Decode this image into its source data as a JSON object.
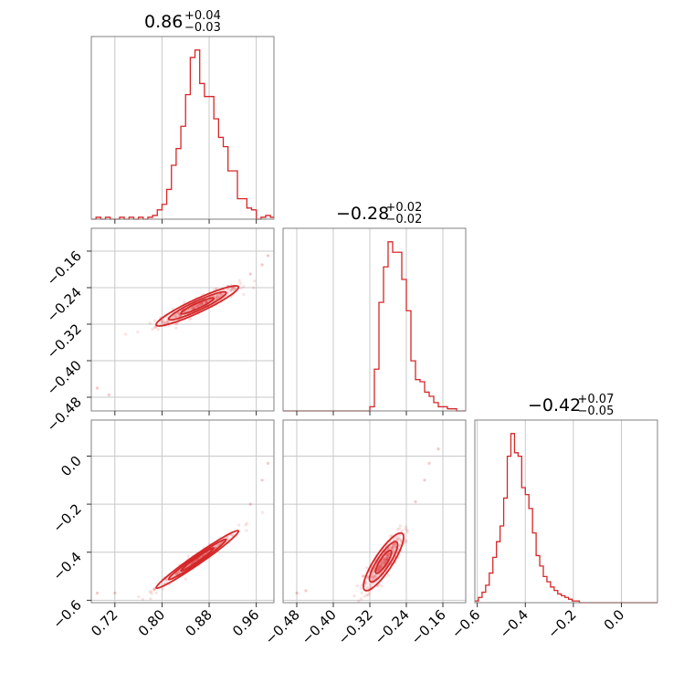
{
  "chart_data": {
    "type": "corner",
    "color": "#d62728",
    "grid": true,
    "parameters": [
      {
        "range": [
          0.68,
          0.99
        ],
        "ticks": [
          0.72,
          0.8,
          0.88,
          0.96
        ],
        "tick_labels": [
          "0.72",
          "0.80",
          "0.88",
          "0.96"
        ],
        "title": {
          "value": "0.86",
          "upper": "+0.04",
          "lower": "−0.03"
        },
        "hist_edges": [
          0.68,
          0.688,
          0.696,
          0.704,
          0.712,
          0.72,
          0.728,
          0.736,
          0.744,
          0.752,
          0.76,
          0.768,
          0.776,
          0.784,
          0.792,
          0.8,
          0.808,
          0.816,
          0.824,
          0.832,
          0.84,
          0.848,
          0.856,
          0.864,
          0.872,
          0.88,
          0.888,
          0.896,
          0.904,
          0.912,
          0.92,
          0.928,
          0.936,
          0.944,
          0.952,
          0.96,
          0.968,
          0.976,
          0.984,
          0.99
        ],
        "hist_values": [
          0,
          1,
          0,
          1,
          0,
          0,
          1,
          0,
          1,
          0,
          1,
          0,
          1,
          2,
          5,
          8,
          16,
          29,
          38,
          50,
          67,
          87,
          91,
          73,
          66,
          66,
          54,
          44,
          39,
          26,
          26,
          11,
          11,
          6,
          5,
          0,
          1,
          2,
          1
        ]
      },
      {
        "range": [
          -0.51,
          -0.11
        ],
        "ticks": [
          -0.48,
          -0.4,
          -0.32,
          -0.24,
          -0.16
        ],
        "tick_labels": [
          "−0.48",
          "−0.40",
          "−0.32",
          "−0.24",
          "−0.16"
        ],
        "title": {
          "value": "−0.28",
          "upper": "+0.02",
          "lower": "−0.02"
        },
        "hist_edges": [
          -0.51,
          -0.5,
          -0.49,
          -0.48,
          -0.47,
          -0.46,
          -0.45,
          -0.44,
          -0.43,
          -0.42,
          -0.41,
          -0.4,
          -0.39,
          -0.38,
          -0.37,
          -0.36,
          -0.35,
          -0.34,
          -0.33,
          -0.32,
          -0.31,
          -0.3,
          -0.29,
          -0.28,
          -0.27,
          -0.26,
          -0.25,
          -0.24,
          -0.23,
          -0.22,
          -0.21,
          -0.2,
          -0.19,
          -0.18,
          -0.17,
          -0.16,
          -0.15,
          -0.14,
          -0.13,
          -0.12,
          -0.11
        ],
        "hist_values": [
          0,
          0,
          0,
          0,
          0,
          0,
          0,
          0,
          0,
          0,
          0,
          0,
          0,
          0,
          0,
          0,
          0,
          0,
          0,
          2,
          20,
          52,
          69,
          81,
          76,
          76,
          63,
          48,
          24,
          15,
          14,
          9,
          7,
          4,
          2,
          2,
          1,
          1,
          0,
          0
        ]
      },
      {
        "range": [
          -0.61,
          0.15
        ],
        "ticks": [
          -0.6,
          -0.4,
          -0.2,
          0.0
        ],
        "tick_labels": [
          "−0.6",
          "−0.4",
          "−0.2",
          "0.0"
        ],
        "title": {
          "value": "−0.42",
          "upper": "+0.07",
          "lower": "−0.05"
        },
        "hist_edges": [
          -0.61,
          -0.595,
          -0.58,
          -0.565,
          -0.55,
          -0.535,
          -0.52,
          -0.505,
          -0.49,
          -0.475,
          -0.46,
          -0.445,
          -0.43,
          -0.415,
          -0.4,
          -0.385,
          -0.37,
          -0.355,
          -0.34,
          -0.325,
          -0.31,
          -0.295,
          -0.28,
          -0.265,
          -0.25,
          -0.235,
          -0.22,
          -0.205,
          -0.19,
          -0.175,
          -0.16,
          -0.145,
          -0.13,
          -0.115,
          -0.1,
          -0.085,
          -0.07,
          -0.055,
          -0.04,
          -0.025,
          -0.01,
          0.005,
          0.02,
          0.035,
          0.05,
          0.065,
          0.08,
          0.095,
          0.11,
          0.125,
          0.15
        ],
        "hist_values": [
          1,
          3,
          6,
          10,
          17,
          26,
          35,
          44,
          60,
          84,
          97,
          86,
          84,
          66,
          62,
          54,
          40,
          27,
          21,
          15,
          12,
          9,
          7,
          5,
          4,
          3,
          2,
          1,
          1,
          0,
          0,
          0,
          0,
          0,
          0,
          0,
          0,
          0,
          0,
          0,
          0,
          0,
          0,
          0,
          0,
          0,
          0,
          0,
          0,
          0
        ]
      }
    ],
    "pairs": [
      {
        "x_param": 0,
        "y_param": 1,
        "correlation": 0.93,
        "center": [
          0.86,
          -0.28
        ],
        "spread": [
          0.035,
          0.022
        ],
        "n_points": 320,
        "outliers": [
          [
            0.69,
            -0.46
          ],
          [
            0.71,
            -0.475
          ],
          [
            0.92,
            -0.24
          ],
          [
            0.95,
            -0.21
          ],
          [
            0.97,
            -0.19
          ],
          [
            0.98,
            -0.17
          ]
        ]
      },
      {
        "x_param": 0,
        "y_param": 2,
        "correlation": 0.98,
        "center": [
          0.86,
          -0.43
        ],
        "spread": [
          0.035,
          0.06
        ],
        "n_points": 320,
        "outliers": [
          [
            0.69,
            -0.57
          ],
          [
            0.72,
            -0.57
          ],
          [
            0.95,
            -0.2
          ],
          [
            0.97,
            -0.1
          ],
          [
            0.98,
            -0.03
          ]
        ]
      },
      {
        "x_param": 1,
        "y_param": 2,
        "correlation": 0.85,
        "center": [
          -0.29,
          -0.44
        ],
        "spread": [
          0.022,
          0.06
        ],
        "n_points": 320,
        "outliers": [
          [
            -0.48,
            -0.57
          ],
          [
            -0.46,
            -0.56
          ],
          [
            -0.22,
            -0.19
          ],
          [
            -0.2,
            -0.1
          ],
          [
            -0.19,
            -0.03
          ],
          [
            -0.17,
            0.03
          ]
        ]
      }
    ]
  }
}
